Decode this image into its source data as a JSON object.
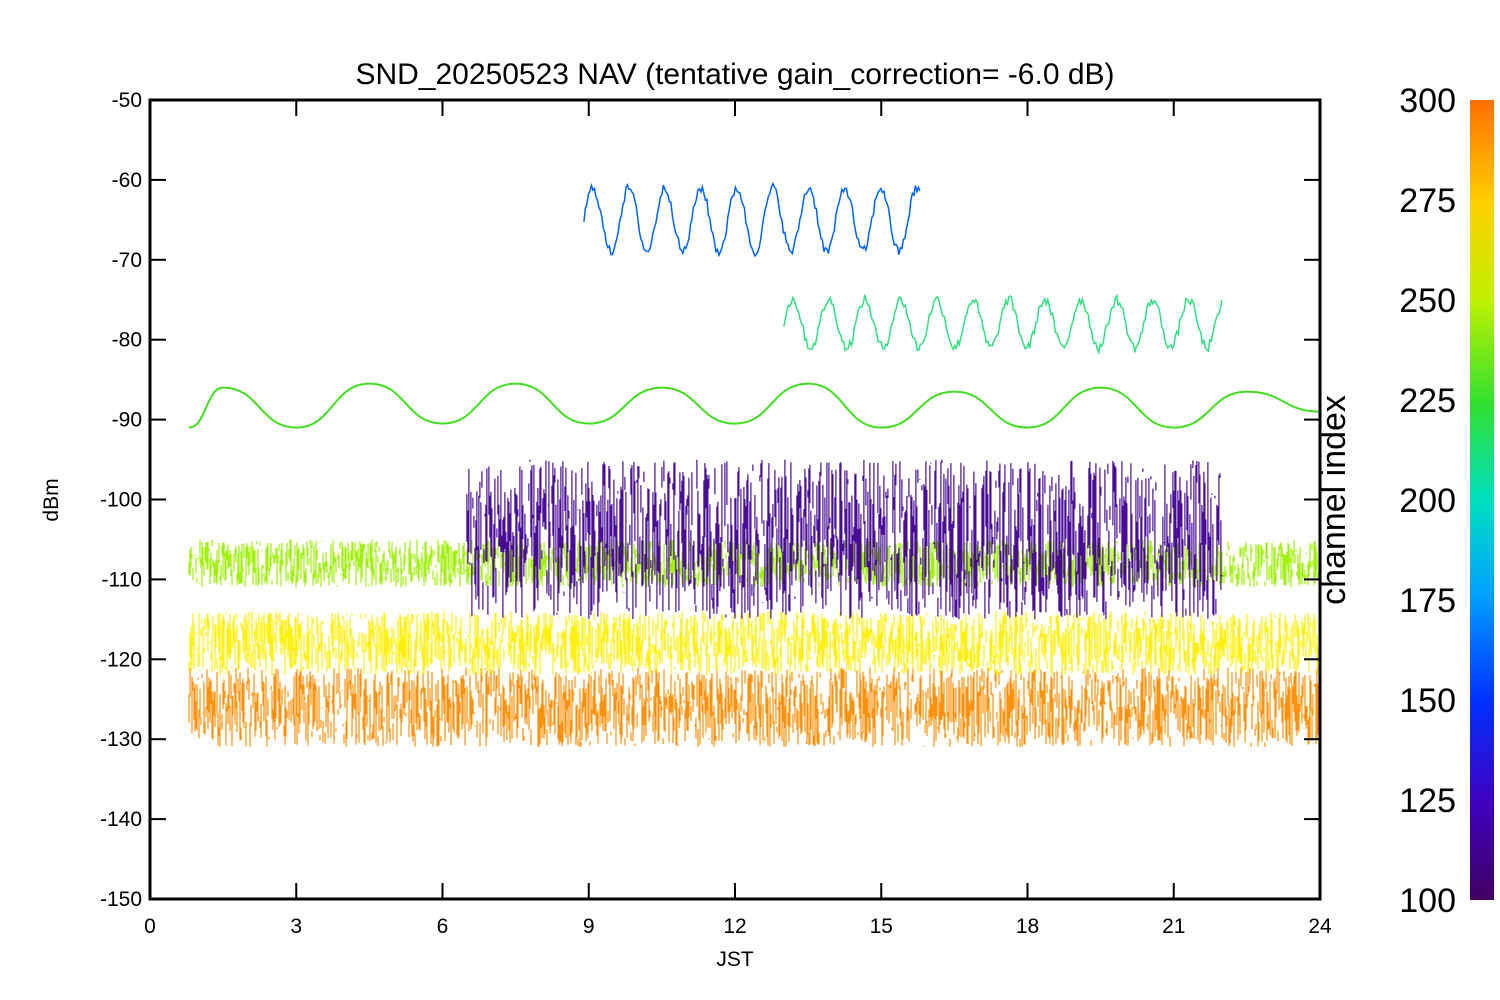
{
  "chart_data": {
    "type": "line",
    "title": "SND_20250523 NAV (tentative gain_correction= -6.0 dB)",
    "xlabel": "JST",
    "ylabel": "dBm",
    "xlim": [
      0,
      24
    ],
    "ylim": [
      -150,
      -50
    ],
    "x_ticks": [
      "0",
      "3",
      "6",
      "9",
      "12",
      "15",
      "18",
      "21",
      "24"
    ],
    "y_ticks": [
      "-50",
      "-60",
      "-70",
      "-80",
      "-90",
      "-100",
      "-110",
      "-120",
      "-130",
      "-140",
      "-150"
    ],
    "grid": false,
    "colorbar": {
      "label": "channel index",
      "range": [
        100,
        300
      ],
      "ticks": [
        "300",
        "275",
        "250",
        "225",
        "200",
        "175",
        "150",
        "125",
        "100"
      ],
      "colormap": "rainbow"
    },
    "series": [
      {
        "channel": 290,
        "color": "#ff8c00",
        "x": [
          0.8,
          24
        ],
        "level_dbm": -126,
        "spread_db": 5
      },
      {
        "channel": 268,
        "color": "#fff000",
        "x": [
          0.8,
          24
        ],
        "level_dbm": -118,
        "spread_db": 4
      },
      {
        "channel": 255,
        "color": "#9cf000",
        "x": [
          0.8,
          24
        ],
        "level_dbm": -108,
        "spread_db": 3
      },
      {
        "channel": 240,
        "color": "#40e020",
        "x": [
          0.8,
          1.5,
          3,
          4.5,
          6,
          7.5,
          9,
          10.5,
          12,
          13.5,
          15,
          16.5,
          18,
          19.5,
          21,
          22.5,
          24
        ],
        "y": [
          -91,
          -86,
          -91,
          -85.5,
          -90.5,
          -85.5,
          -90.5,
          -86,
          -90.5,
          -85.5,
          -91,
          -86.5,
          -91,
          -86,
          -91,
          -86.5,
          -89
        ]
      },
      {
        "channel": 210,
        "color": "#30e080",
        "x": [
          13,
          22
        ],
        "level_dbm": -78,
        "amplitude_db": 3
      },
      {
        "channel": 150,
        "color": "#0064ff",
        "x": [
          8.9,
          15.8
        ],
        "level_dbm": -65,
        "amplitude_db": 4
      },
      {
        "channel": 120,
        "color": "#400090",
        "x": [
          6.5,
          22
        ],
        "level_dbm": -105,
        "spread_db": 10
      }
    ]
  }
}
